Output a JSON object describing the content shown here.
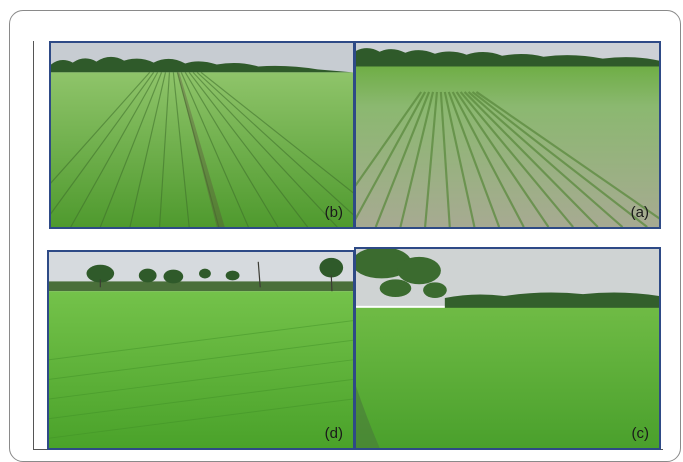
{
  "panels": {
    "b": {
      "label": "(b)"
    },
    "a": {
      "label": "(a)"
    },
    "d": {
      "label": "(d)"
    },
    "c": {
      "label": "(c)"
    }
  },
  "colors": {
    "panel_border": "#2e4a86",
    "sky": "#c9ced3",
    "field_green": "#5db43c",
    "tree_line": "#2f5a2a",
    "water": "#a9a99a"
  }
}
